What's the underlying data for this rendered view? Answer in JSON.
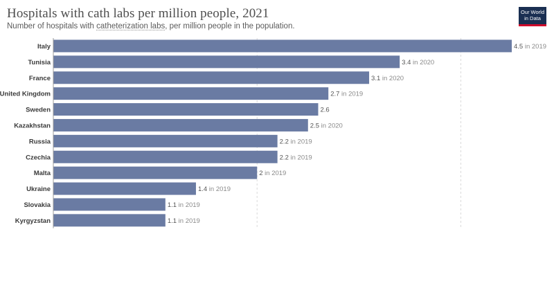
{
  "header": {
    "title": "Hospitals with cath labs per million people, 2021",
    "subtitle_before": "Number of hospitals with ",
    "subtitle_term": "catheterization labs",
    "subtitle_after": ", per million people in the population."
  },
  "logo": {
    "line1": "Our World",
    "line2": "in Data"
  },
  "colors": {
    "bar": "#6a7ba3",
    "grid": "#d9d9d9",
    "axis": "#999999"
  },
  "chart_data": {
    "type": "bar",
    "orientation": "horizontal",
    "title": "Hospitals with cath labs per million people, 2021",
    "categories": [
      "Italy",
      "Tunisia",
      "France",
      "United Kingdom",
      "Sweden",
      "Kazakhstan",
      "Russia",
      "Czechia",
      "Malta",
      "Ukraine",
      "Slovakia",
      "Kyrgyzstan"
    ],
    "values": [
      4.5,
      3.4,
      3.1,
      2.7,
      2.6,
      2.5,
      2.2,
      2.2,
      2,
      1.4,
      1.1,
      1.1
    ],
    "value_labels": [
      "4.5",
      "3.4",
      "3.1",
      "2.7",
      "2.6",
      "2.5",
      "2.2",
      "2.2",
      "2",
      "1.4",
      "1.1",
      "1.1"
    ],
    "year_notes": [
      "in 2019",
      "in 2020",
      "in 2020",
      "in 2019",
      "",
      "in 2020",
      "in 2019",
      "in 2019",
      "in 2019",
      "in 2019",
      "in 2019",
      "in 2019"
    ],
    "xlim": [
      0,
      4.5
    ],
    "gridlines": [
      0,
      2,
      4
    ],
    "grid": true
  }
}
